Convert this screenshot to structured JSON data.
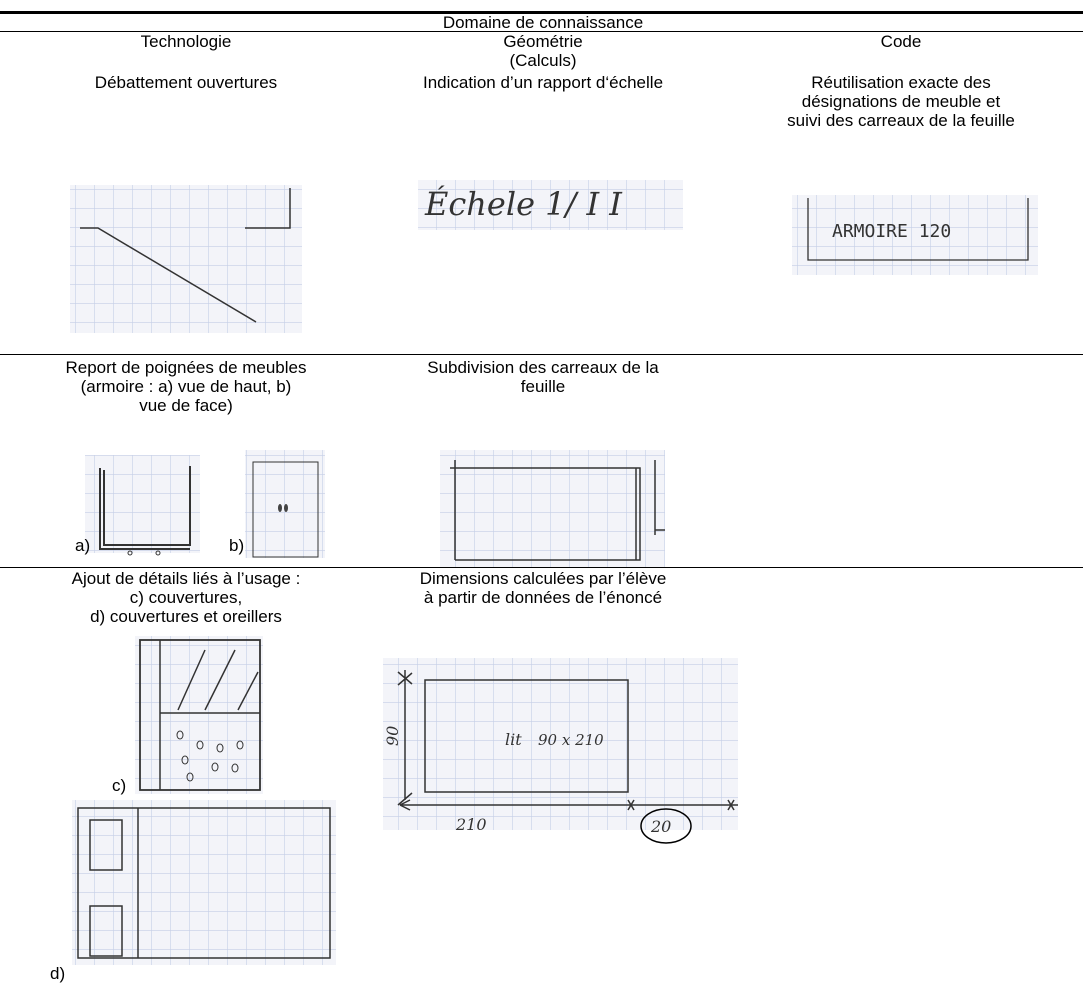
{
  "header": {
    "domain": "Domaine de connaissance",
    "columns": [
      [
        "Technologie"
      ],
      [
        "Géométrie",
        "(Calculs)"
      ],
      [
        "Code"
      ]
    ]
  },
  "rows": [
    {
      "cells": [
        {
          "lines": [
            "Débattement ouvertures"
          ]
        },
        {
          "lines": [
            "Indication d’un rapport d‘échelle"
          ],
          "sketch_texts": [
            "Échele 1/ I I"
          ]
        },
        {
          "lines": [
            "Réutilisation exacte des",
            "désignations de meuble et",
            "suivi des carreaux de la feuille"
          ],
          "sketch_texts": [
            "ARMOIRE 120"
          ]
        }
      ]
    },
    {
      "cells": [
        {
          "lines": [
            "Report de poignées de meubles",
            "(armoire : a) vue de haut, b)",
            "vue de face)"
          ],
          "labels": [
            "a)",
            "b)"
          ]
        },
        {
          "lines": [
            "Subdivision des carreaux de la",
            "feuille"
          ]
        }
      ]
    },
    {
      "cells": [
        {
          "lines": [
            "Ajout de détails liés à l’usage :",
            "c) couvertures,",
            "d) couvertures et oreillers"
          ],
          "labels": [
            "c)",
            "d)"
          ]
        },
        {
          "lines": [
            "Dimensions calculées par l’élève",
            "à partir de données de l’énoncé"
          ],
          "sketch_texts": [
            "lit",
            "90 x 210",
            "90",
            "210",
            "20"
          ]
        }
      ]
    }
  ]
}
